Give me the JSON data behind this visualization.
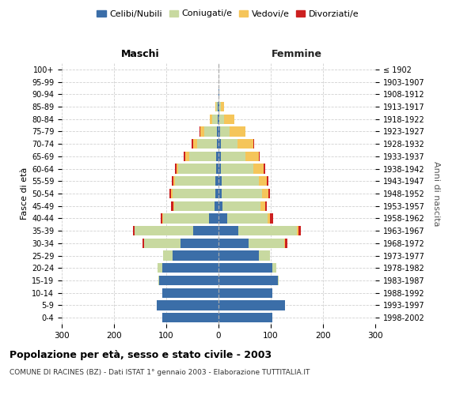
{
  "age_groups": [
    "0-4",
    "5-9",
    "10-14",
    "15-19",
    "20-24",
    "25-29",
    "30-34",
    "35-39",
    "40-44",
    "45-49",
    "50-54",
    "55-59",
    "60-64",
    "65-69",
    "70-74",
    "75-79",
    "80-84",
    "85-89",
    "90-94",
    "95-99",
    "100+"
  ],
  "birth_years": [
    "1998-2002",
    "1993-1997",
    "1988-1992",
    "1983-1987",
    "1978-1982",
    "1973-1977",
    "1968-1972",
    "1963-1967",
    "1958-1962",
    "1953-1957",
    "1948-1952",
    "1943-1947",
    "1938-1942",
    "1933-1937",
    "1928-1932",
    "1923-1927",
    "1918-1922",
    "1913-1917",
    "1908-1912",
    "1903-1907",
    "≤ 1902"
  ],
  "male": {
    "celibe": [
      108,
      118,
      108,
      113,
      108,
      88,
      72,
      48,
      18,
      7,
      6,
      6,
      5,
      4,
      3,
      3,
      2,
      1,
      0,
      0,
      0
    ],
    "coniugato": [
      0,
      0,
      0,
      2,
      8,
      18,
      70,
      112,
      88,
      78,
      82,
      78,
      72,
      52,
      38,
      24,
      10,
      4,
      0,
      0,
      0
    ],
    "vedovo": [
      0,
      0,
      0,
      0,
      0,
      0,
      1,
      0,
      1,
      2,
      3,
      3,
      4,
      8,
      8,
      8,
      5,
      1,
      0,
      0,
      0
    ],
    "divorziato": [
      0,
      0,
      0,
      0,
      0,
      0,
      3,
      4,
      3,
      4,
      3,
      3,
      3,
      2,
      2,
      2,
      0,
      0,
      0,
      0,
      0
    ]
  },
  "female": {
    "nubile": [
      103,
      128,
      103,
      113,
      103,
      78,
      58,
      38,
      16,
      7,
      6,
      6,
      5,
      4,
      4,
      3,
      2,
      2,
      1,
      0,
      0
    ],
    "coniugata": [
      0,
      0,
      0,
      2,
      8,
      20,
      68,
      112,
      78,
      73,
      78,
      72,
      62,
      48,
      33,
      18,
      8,
      3,
      0,
      0,
      0
    ],
    "vedova": [
      0,
      0,
      0,
      0,
      0,
      0,
      1,
      3,
      5,
      10,
      12,
      15,
      20,
      25,
      30,
      30,
      20,
      5,
      1,
      0,
      0
    ],
    "divorziata": [
      0,
      0,
      0,
      0,
      0,
      0,
      5,
      5,
      5,
      3,
      3,
      2,
      2,
      2,
      1,
      1,
      0,
      0,
      0,
      0,
      0
    ]
  },
  "colors": {
    "celibe_nubile": "#3B6EA8",
    "coniugato": "#C8D9A0",
    "vedovo": "#F5C55A",
    "divorziato": "#CC2020"
  },
  "xlim": 300,
  "title": "Popolazione per età, sesso e stato civile - 2003",
  "subtitle": "COMUNE DI RACINES (BZ) - Dati ISTAT 1° gennaio 2003 - Elaborazione TUTTITALIA.IT",
  "ylabel_left": "Fasce di età",
  "ylabel_right": "Anni di nascita",
  "xlabel_maschi": "Maschi",
  "xlabel_femmine": "Femmine",
  "legend_labels": [
    "Celibi/Nubili",
    "Coniugati/e",
    "Vedovi/e",
    "Divorziati/e"
  ],
  "background_color": "#ffffff",
  "grid_color": "#cccccc"
}
